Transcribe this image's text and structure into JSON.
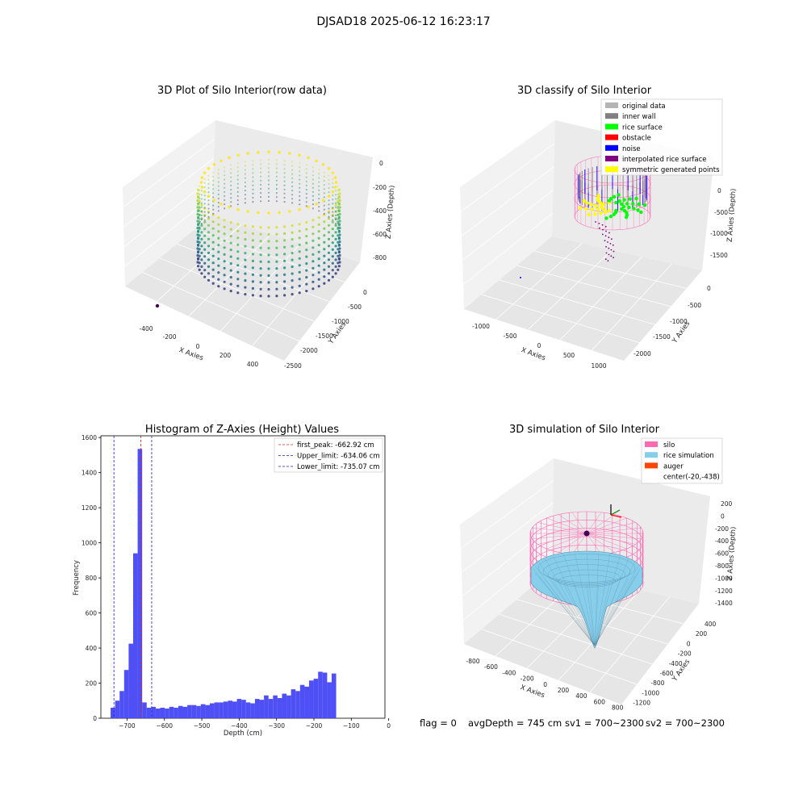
{
  "suptitle": "DJSAD18 2025-06-12 16:23:17",
  "colors": {
    "hist_bar": "#4646f5",
    "first_peak": "#d62728",
    "limits": "#1f1fbf",
    "silo": "#ff69b4",
    "rice_simulation": "#87ceeb",
    "auger": "#ff4500"
  },
  "chart_data": [
    {
      "type": "scatter3d",
      "title": "3D Plot of Silo Interior(row data)",
      "xlabel": "X Axies",
      "ylabel": "Y Axies",
      "zlabel": "Z Axies (Depth)",
      "x_ticks": [
        "-400",
        "-200",
        "0",
        "200",
        "400"
      ],
      "y_ticks": [
        "0",
        "-500",
        "-1000",
        "-1500",
        "-2000",
        "-2500"
      ],
      "z_ticks": [
        "0",
        "-200",
        "-400",
        "-600",
        "-800"
      ],
      "colormap": "viridis"
    },
    {
      "type": "scatter3d",
      "title": "3D classify of Silo Interior",
      "xlabel": "X Axies",
      "ylabel": "Y Axies",
      "zlabel": "Z Axies (Depth)",
      "x_ticks": [
        "-1000",
        "-500",
        "0",
        "500",
        "1000"
      ],
      "y_ticks": [
        "0",
        "-500",
        "-1000",
        "-1500",
        "-2000"
      ],
      "z_ticks": [
        "0",
        "-500",
        "-1000",
        "-1500"
      ],
      "legend": [
        {
          "label": "original data",
          "color": "#b4b4b4"
        },
        {
          "label": "inner wall",
          "color": "#808080"
        },
        {
          "label": "rice surface",
          "color": "#00ff00"
        },
        {
          "label": "obstacle",
          "color": "#ff0000"
        },
        {
          "label": "noise",
          "color": "#0000ff"
        },
        {
          "label": "interpolated rice surface",
          "color": "#800080"
        },
        {
          "label": "symmetric generated points",
          "color": "#ffff00"
        }
      ]
    },
    {
      "type": "bar",
      "title": "Histogram of Z-Axies (Height) Values",
      "xlabel": "Depth (cm)",
      "ylabel": "Frequency",
      "xlim": [
        -770,
        -10
      ],
      "ylim": [
        0,
        1610
      ],
      "x_ticks": [
        -700,
        -600,
        -500,
        -400,
        -300,
        -200,
        -100,
        0
      ],
      "y_ticks": [
        0,
        200,
        400,
        600,
        800,
        1000,
        1200,
        1400,
        1600
      ],
      "bin_start": -744,
      "bin_width": 12.07,
      "values": [
        60,
        100,
        155,
        275,
        425,
        940,
        1535,
        90,
        60,
        65,
        55,
        60,
        55,
        65,
        60,
        70,
        65,
        75,
        75,
        70,
        80,
        75,
        85,
        90,
        90,
        95,
        100,
        95,
        110,
        105,
        90,
        85,
        110,
        105,
        130,
        110,
        130,
        115,
        140,
        130,
        165,
        155,
        190,
        180,
        215,
        225,
        265,
        260,
        205,
        255
      ],
      "vlines": [
        {
          "label": "first_peak: -662.92 cm",
          "x": -662.92,
          "color": "#d62728"
        },
        {
          "label": "Upper_limit: -634.06 cm",
          "x": -634.06,
          "color": "#1f1fbf"
        },
        {
          "label": "Lower_limit: -735.07 cm",
          "x": -735.07,
          "color": "#1f1fbf"
        }
      ]
    },
    {
      "type": "surface3d",
      "title": "3D simulation of Silo Interior",
      "xlabel": "X Axies",
      "ylabel": "Y Axies",
      "zlabel": "Z Axies (Depth)",
      "x_ticks": [
        "-800",
        "-600",
        "-400",
        "-200",
        "0",
        "200",
        "400",
        "600",
        "800"
      ],
      "y_ticks": [
        "400",
        "200",
        "0",
        "-200",
        "-400",
        "-600",
        "-800",
        "-1000",
        "-1200"
      ],
      "z_ticks": [
        "200",
        "0",
        "-200",
        "-400",
        "-600",
        "-800",
        "-1000",
        "-1200",
        "-1400"
      ],
      "legend": [
        {
          "label": "silo",
          "color": "#ff69b4"
        },
        {
          "label": "rice simulation",
          "color": "#87ceeb"
        },
        {
          "label": "auger",
          "color": "#ff4500"
        },
        {
          "label": "center(-20,-438)",
          "color": ""
        }
      ]
    }
  ],
  "footer": {
    "flag": "flag = 0",
    "avg_depth": "avgDepth = 745 cm",
    "sv1": "sv1 = 700~2300",
    "sv2": "sv2 = 700~2300"
  }
}
